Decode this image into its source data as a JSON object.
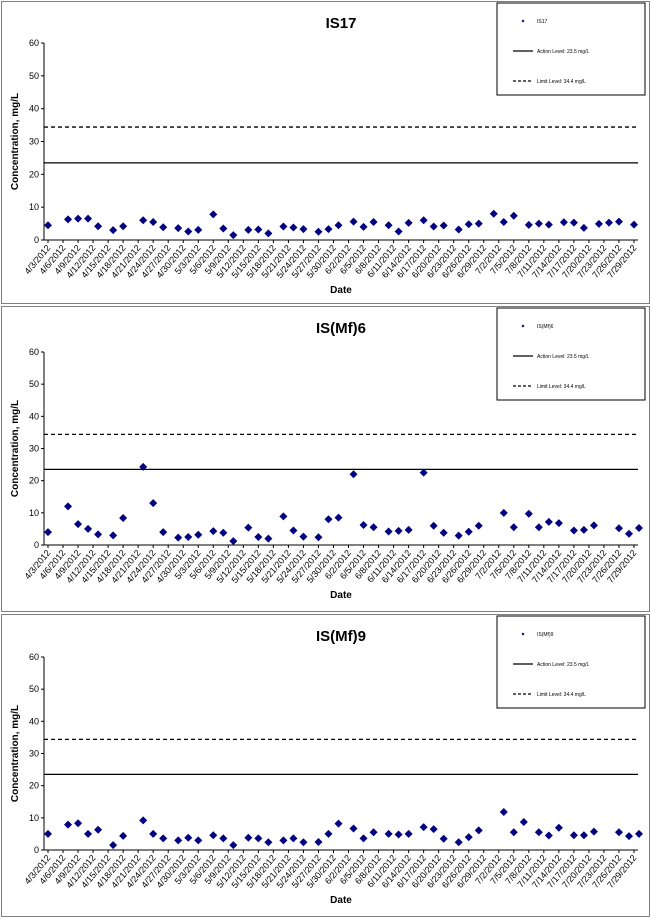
{
  "chart_data": [
    {
      "type": "scatter",
      "title": "IS17",
      "xlabel": "Date",
      "ylabel": "Concentration, mg/L",
      "ylim": [
        0,
        60
      ],
      "yticks": [
        0,
        10,
        20,
        30,
        40,
        50,
        60
      ],
      "x_tick_labels": [
        "4/3/2012",
        "4/6/2012",
        "4/9/2012",
        "4/12/2012",
        "4/15/2012",
        "4/18/2012",
        "4/21/2012",
        "4/24/2012",
        "4/27/2012",
        "4/30/2012",
        "5/3/2012",
        "5/6/2012",
        "5/9/2012",
        "5/12/2012",
        "5/15/2012",
        "5/18/2012",
        "5/21/2012",
        "5/24/2012",
        "5/27/2012",
        "5/30/2012",
        "6/2/2012",
        "6/5/2012",
        "6/8/2012",
        "6/11/2012",
        "6/14/2012",
        "6/17/2012",
        "6/20/2012",
        "6/23/2012",
        "6/26/2012",
        "6/29/2012",
        "7/2/2012",
        "7/5/2012",
        "7/8/2012",
        "7/11/2012",
        "7/14/2012",
        "7/17/2012",
        "7/20/2012",
        "7/23/2012",
        "7/26/2012",
        "7/29/2012"
      ],
      "x_start_label": "4/3/2012",
      "x_end_label": "7/29/2012",
      "series": [
        {
          "name": "IS17",
          "marker": "diamond",
          "color": "#000080",
          "x": [
            "4/3/2012",
            "4/7/2012",
            "4/9/2012",
            "4/11/2012",
            "4/13/2012",
            "4/16/2012",
            "4/18/2012",
            "4/22/2012",
            "4/24/2012",
            "4/26/2012",
            "4/29/2012",
            "5/1/2012",
            "5/3/2012",
            "5/6/2012",
            "5/8/2012",
            "5/10/2012",
            "5/13/2012",
            "5/15/2012",
            "5/17/2012",
            "5/20/2012",
            "5/22/2012",
            "5/24/2012",
            "5/27/2012",
            "5/29/2012",
            "5/31/2012",
            "6/3/2012",
            "6/5/2012",
            "6/7/2012",
            "6/10/2012",
            "6/12/2012",
            "6/14/2012",
            "6/17/2012",
            "6/19/2012",
            "6/21/2012",
            "6/24/2012",
            "6/26/2012",
            "6/28/2012",
            "7/1/2012",
            "7/3/2012",
            "7/5/2012",
            "7/8/2012",
            "7/10/2012",
            "7/12/2012",
            "7/15/2012",
            "7/17/2012",
            "7/19/2012",
            "7/22/2012",
            "7/24/2012",
            "7/26/2012",
            "7/29/2012"
          ],
          "y": [
            4.5,
            6.3,
            6.5,
            6.5,
            4.2,
            3.0,
            4.2,
            6.0,
            5.5,
            3.9,
            3.6,
            2.6,
            3.1,
            7.8,
            3.5,
            1.5,
            3.1,
            3.2,
            2.0,
            4.1,
            3.8,
            3.3,
            2.5,
            3.3,
            4.5,
            5.6,
            4.0,
            5.5,
            4.5,
            2.6,
            5.2,
            6.0,
            4.1,
            4.4,
            3.2,
            4.8,
            5.0,
            8.0,
            5.5,
            7.4,
            4.6,
            5.0,
            4.7,
            5.4,
            5.3,
            3.7,
            4.9,
            5.3,
            5.6,
            4.7
          ]
        }
      ],
      "reference_lines": [
        {
          "label": "Action Level: 23.5 mg/L",
          "value": 23.5,
          "style": "solid"
        },
        {
          "label": "Limit Level: 34.4 mg/L",
          "value": 34.4,
          "style": "dashed"
        }
      ],
      "legend": {
        "placement": "top-right",
        "entries": [
          "IS17",
          "Action Level: 23.5 mg/L",
          "Limit Level: 34.4 mg/L"
        ]
      }
    },
    {
      "type": "scatter",
      "title": "IS(Mf)6",
      "xlabel": "Date",
      "ylabel": "Concentration, mg/L",
      "ylim": [
        0,
        60
      ],
      "yticks": [
        0,
        10,
        20,
        30,
        40,
        50,
        60
      ],
      "x_tick_labels": [
        "4/3/2012",
        "4/6/2012",
        "4/9/2012",
        "4/12/2012",
        "4/15/2012",
        "4/18/2012",
        "4/21/2012",
        "4/24/2012",
        "4/27/2012",
        "4/30/2012",
        "5/3/2012",
        "5/6/2012",
        "5/9/2012",
        "5/12/2012",
        "5/15/2012",
        "5/18/2012",
        "5/21/2012",
        "5/24/2012",
        "5/27/2012",
        "5/30/2012",
        "6/2/2012",
        "6/5/2012",
        "6/8/2012",
        "6/11/2012",
        "6/14/2012",
        "6/17/2012",
        "6/20/2012",
        "6/23/2012",
        "6/26/2012",
        "6/29/2012",
        "7/2/2012",
        "7/5/2012",
        "7/8/2012",
        "7/11/2012",
        "7/14/2012",
        "7/17/2012",
        "7/20/2012",
        "7/23/2012",
        "7/26/2012",
        "7/29/2012"
      ],
      "x_start_label": "4/3/2012",
      "x_end_label": "7/29/2012",
      "series": [
        {
          "name": "IS(Mf)6",
          "marker": "diamond",
          "color": "#000080",
          "x": [
            "4/3/2012",
            "4/7/2012",
            "4/9/2012",
            "4/11/2012",
            "4/13/2012",
            "4/16/2012",
            "4/18/2012",
            "4/22/2012",
            "4/24/2012",
            "4/26/2012",
            "4/29/2012",
            "5/1/2012",
            "5/3/2012",
            "5/6/2012",
            "5/8/2012",
            "5/10/2012",
            "5/13/2012",
            "5/15/2012",
            "5/17/2012",
            "5/20/2012",
            "5/22/2012",
            "5/24/2012",
            "5/27/2012",
            "5/29/2012",
            "5/31/2012",
            "6/3/2012",
            "6/5/2012",
            "6/7/2012",
            "6/10/2012",
            "6/12/2012",
            "6/14/2012",
            "6/17/2012",
            "6/19/2012",
            "6/21/2012",
            "6/24/2012",
            "6/26/2012",
            "6/28/2012",
            "7/3/2012",
            "7/5/2012",
            "7/8/2012",
            "7/10/2012",
            "7/12/2012",
            "7/14/2012",
            "7/17/2012",
            "7/19/2012",
            "7/21/2012",
            "7/26/2012",
            "7/28/2012",
            "7/30/2012"
          ],
          "y": [
            4.0,
            12.0,
            6.5,
            5.0,
            3.3,
            3.0,
            8.4,
            24.3,
            13.0,
            4.0,
            2.3,
            2.5,
            3.2,
            4.3,
            3.8,
            1.2,
            5.4,
            2.5,
            2.0,
            8.9,
            4.5,
            2.6,
            2.4,
            8.0,
            8.5,
            22.0,
            6.2,
            5.5,
            4.2,
            4.4,
            4.7,
            22.5,
            6.0,
            3.8,
            2.9,
            4.1,
            6.0,
            10.0,
            5.5,
            9.7,
            5.5,
            7.2,
            6.8,
            4.5,
            4.7,
            6.1,
            5.2,
            3.5,
            5.3
          ]
        }
      ],
      "reference_lines": [
        {
          "label": "Action Level: 23.5 mg/L",
          "value": 23.5,
          "style": "solid"
        },
        {
          "label": "Limit Level: 34.4 mg/L",
          "value": 34.4,
          "style": "dashed"
        }
      ],
      "legend": {
        "placement": "top-right",
        "entries": [
          "IS(Mf)6",
          "Action Level: 23.5 mg/L",
          "Limit Level: 34.4 mg/L"
        ]
      }
    },
    {
      "type": "scatter",
      "title": "IS(Mf)9",
      "xlabel": "Date",
      "ylabel": "Concentration, mg/L",
      "ylim": [
        0,
        60
      ],
      "yticks": [
        0,
        10,
        20,
        30,
        40,
        50,
        60
      ],
      "x_tick_labels": [
        "4/3/2012",
        "4/6/2012",
        "4/9/2012",
        "4/12/2012",
        "4/15/2012",
        "4/18/2012",
        "4/21/2012",
        "4/24/2012",
        "4/27/2012",
        "4/30/2012",
        "5/3/2012",
        "5/6/2012",
        "5/9/2012",
        "5/12/2012",
        "5/15/2012",
        "5/18/2012",
        "5/21/2012",
        "5/24/2012",
        "5/27/2012",
        "5/30/2012",
        "6/2/2012",
        "6/5/2012",
        "6/8/2012",
        "6/11/2012",
        "6/14/2012",
        "6/17/2012",
        "6/20/2012",
        "6/23/2012",
        "6/26/2012",
        "6/29/2012",
        "7/2/2012",
        "7/5/2012",
        "7/8/2012",
        "7/11/2012",
        "7/14/2012",
        "7/17/2012",
        "7/20/2012",
        "7/23/2012",
        "7/26/2012",
        "7/29/2012"
      ],
      "x_start_label": "4/3/2012",
      "x_end_label": "7/29/2012",
      "series": [
        {
          "name": "IS(Mf)9",
          "marker": "diamond",
          "color": "#000080",
          "x": [
            "4/3/2012",
            "4/7/2012",
            "4/9/2012",
            "4/11/2012",
            "4/13/2012",
            "4/16/2012",
            "4/18/2012",
            "4/22/2012",
            "4/24/2012",
            "4/26/2012",
            "4/29/2012",
            "5/1/2012",
            "5/3/2012",
            "5/6/2012",
            "5/8/2012",
            "5/10/2012",
            "5/13/2012",
            "5/15/2012",
            "5/17/2012",
            "5/20/2012",
            "5/22/2012",
            "5/24/2012",
            "5/27/2012",
            "5/29/2012",
            "5/31/2012",
            "6/3/2012",
            "6/5/2012",
            "6/7/2012",
            "6/10/2012",
            "6/12/2012",
            "6/14/2012",
            "6/17/2012",
            "6/19/2012",
            "6/21/2012",
            "6/24/2012",
            "6/26/2012",
            "6/28/2012",
            "7/3/2012",
            "7/5/2012",
            "7/7/2012",
            "7/10/2012",
            "7/12/2012",
            "7/14/2012",
            "7/17/2012",
            "7/19/2012",
            "7/21/2012",
            "7/26/2012",
            "7/28/2012",
            "7/30/2012"
          ],
          "y": [
            5.0,
            7.9,
            8.3,
            5.0,
            6.3,
            1.5,
            4.4,
            9.2,
            5.0,
            3.6,
            3.0,
            3.8,
            3.0,
            4.6,
            3.6,
            1.5,
            3.8,
            3.6,
            2.4,
            3.0,
            3.6,
            2.4,
            2.5,
            5.0,
            8.2,
            6.7,
            3.6,
            5.5,
            5.0,
            4.8,
            5.0,
            7.1,
            6.5,
            3.5,
            2.4,
            4.0,
            6.1,
            11.8,
            5.5,
            8.7,
            5.5,
            4.5,
            6.9,
            4.6,
            4.6,
            5.7,
            5.5,
            4.3,
            5.0
          ]
        }
      ],
      "reference_lines": [
        {
          "label": "Action Level: 23.5 mg/L",
          "value": 23.5,
          "style": "solid"
        },
        {
          "label": "Limit Level: 34.4 mg/L",
          "value": 34.4,
          "style": "dashed"
        }
      ],
      "legend": {
        "placement": "top-right",
        "entries": [
          "IS(Mf)9",
          "Action Level: 23.5 mg/L",
          "Limit Level: 34.4 mg/L"
        ]
      }
    }
  ]
}
